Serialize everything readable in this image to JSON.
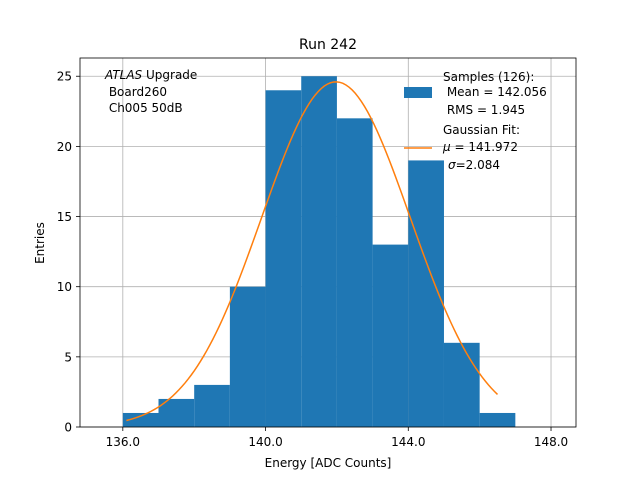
{
  "chart_data": {
    "type": "bar",
    "title": "Run 242",
    "xlabel": "Energy [ADC Counts]",
    "ylabel": "Entries",
    "xlim": [
      134.8,
      148.7
    ],
    "ylim": [
      0,
      26.3
    ],
    "grid": true,
    "xticks": [
      136.0,
      140.0,
      144.0,
      148.0
    ],
    "xtick_labels": [
      "136.0",
      "140.0",
      "144.0",
      "148.0"
    ],
    "yticks": [
      0,
      5,
      10,
      15,
      20,
      25
    ],
    "ytick_labels": [
      "0",
      "5",
      "10",
      "15",
      "20",
      "25"
    ],
    "histogram": {
      "bin_edges": [
        136,
        137,
        138,
        139,
        140,
        141,
        142,
        143,
        144,
        145,
        146,
        147
      ],
      "counts": [
        1,
        2,
        3,
        10,
        24,
        25,
        22,
        13,
        19,
        6,
        1
      ],
      "color": "#1f77b4"
    },
    "fit": {
      "type": "gaussian",
      "mu": 141.972,
      "sigma": 2.084,
      "amplitude": 24.6,
      "x_range": [
        136.1,
        146.5
      ],
      "color": "#ff7f0e"
    },
    "annotation_lines": [
      {
        "style": "italic",
        "text": "ATLAS",
        "rest": " Upgrade"
      },
      {
        "text": " Board260"
      },
      {
        "text": " Ch005 50dB"
      }
    ],
    "legend": {
      "position": "top-right",
      "samples_lines": [
        "Samples (126):",
        " Mean = 142.056",
        " RMS = 1.945"
      ],
      "fit_lines": [
        {
          "text": "Gaussian Fit:"
        },
        {
          "symbol": "μ",
          "text": " = 141.972"
        },
        {
          "symbol": "σ",
          "text": "=2.084"
        }
      ]
    }
  }
}
